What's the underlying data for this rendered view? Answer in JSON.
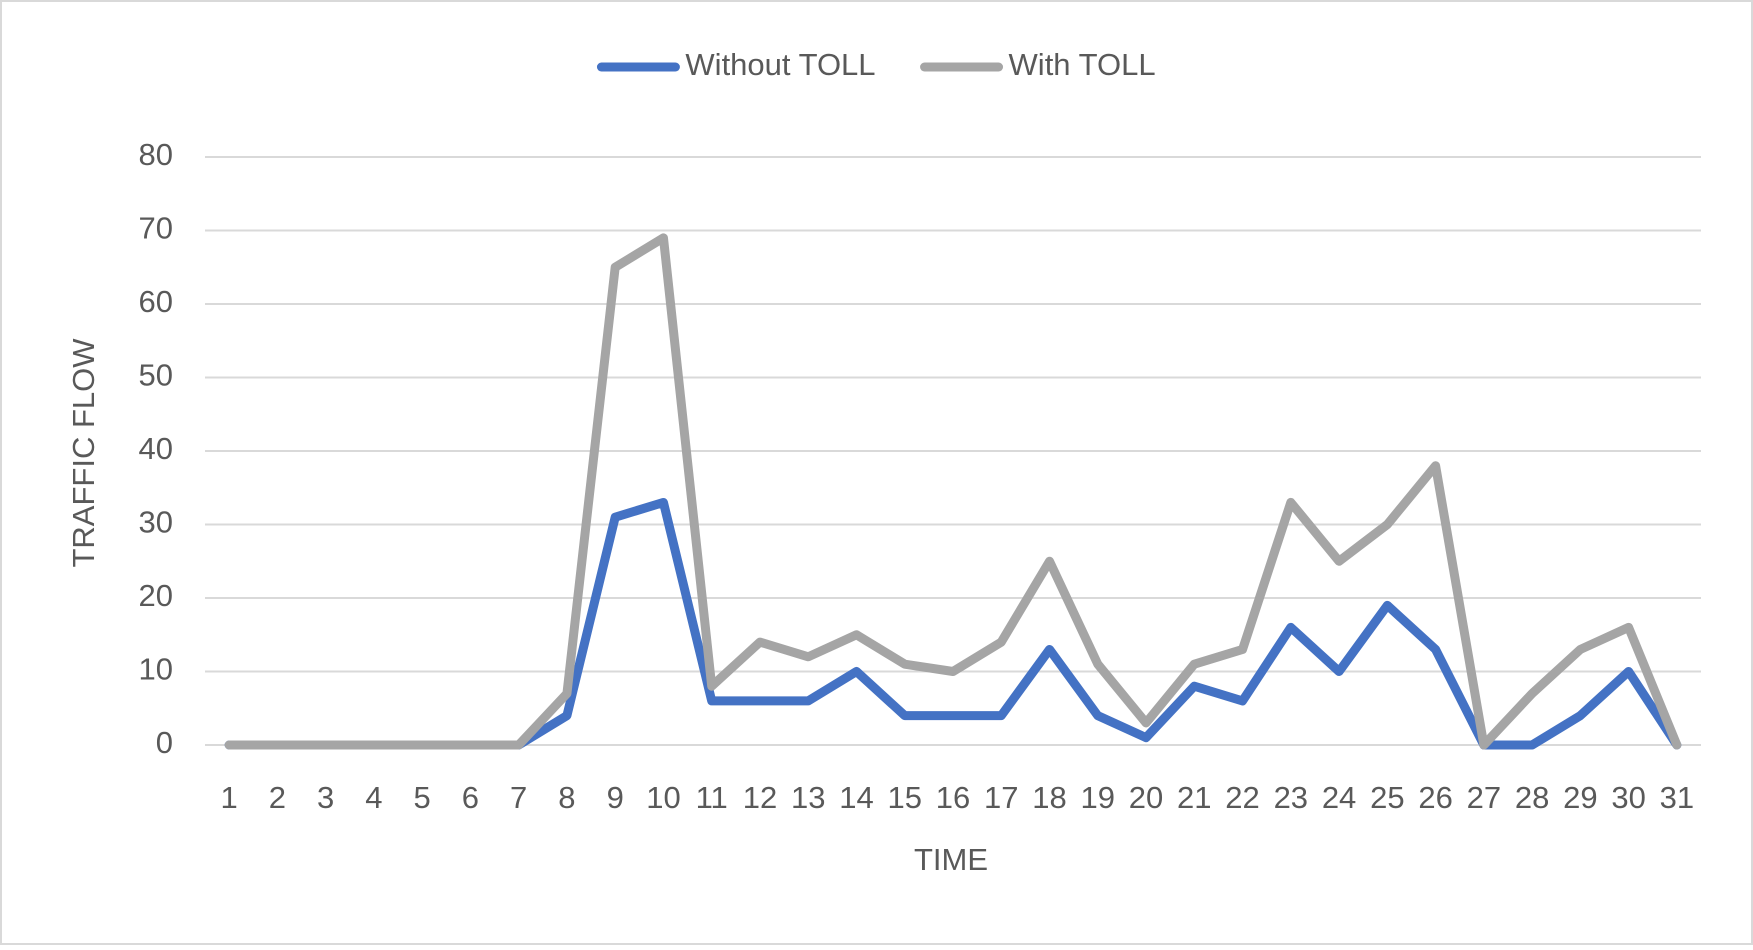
{
  "chart_data": {
    "type": "line",
    "x_label": "TIME",
    "y_label": "TRAFFIC FLOW",
    "categories": [
      "1",
      "2",
      "3",
      "4",
      "5",
      "6",
      "7",
      "8",
      "9",
      "10",
      "11",
      "12",
      "13",
      "14",
      "15",
      "16",
      "17",
      "18",
      "19",
      "20",
      "21",
      "22",
      "23",
      "24",
      "25",
      "26",
      "27",
      "28",
      "29",
      "30",
      "31"
    ],
    "series": [
      {
        "name": "Without TOLL",
        "color": "#4472c4",
        "values": [
          0,
          0,
          0,
          0,
          0,
          0,
          0,
          4,
          31,
          33,
          6,
          6,
          6,
          10,
          4,
          4,
          4,
          13,
          4,
          1,
          8,
          6,
          16,
          10,
          19,
          13,
          0,
          0,
          4,
          10,
          0
        ]
      },
      {
        "name": "With TOLL",
        "color": "#a5a5a5",
        "values": [
          0,
          0,
          0,
          0,
          0,
          0,
          0,
          7,
          65,
          69,
          8,
          14,
          12,
          15,
          11,
          10,
          14,
          25,
          11,
          3,
          11,
          13,
          33,
          25,
          30,
          38,
          0,
          7,
          13,
          16,
          0
        ]
      }
    ],
    "ylim": [
      0,
      80
    ],
    "yticks": [
      0,
      10,
      20,
      30,
      40,
      50,
      60,
      70,
      80
    ],
    "grid": true,
    "legend": "top"
  }
}
